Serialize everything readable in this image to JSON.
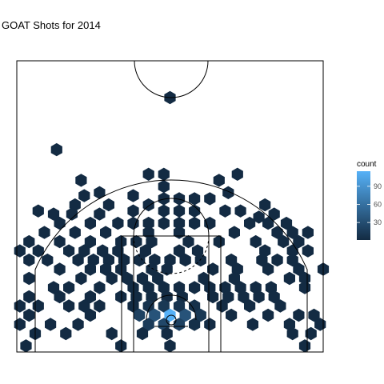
{
  "chart_data": {
    "type": "hexbin",
    "title": "GOAT Shots for 2014",
    "xlabel": "",
    "ylabel": "",
    "grid": false,
    "legend": {
      "title": "count",
      "position": "right",
      "ticks": [
        30,
        60,
        90
      ],
      "range": [
        1,
        115
      ],
      "color_low": "#132B43",
      "color_high": "#56B1F7"
    },
    "court": {
      "width_ft": 50,
      "length_ft": 47,
      "lane_outer_width_ft": 16,
      "lane_inner_width_ft": 12,
      "free_throw_line_ft": 19,
      "free_throw_circle_radius_ft": 6,
      "restricted_area_radius_ft": 4,
      "hoop_center_ft": 5.25,
      "three_point_radius_ft": 23.75,
      "three_point_corner_ft": 22,
      "center_circle_radius_ft": 6
    },
    "bins_ft": [
      [
        0,
        41.5,
        1
      ],
      [
        -18.5,
        33.0,
        1
      ],
      [
        -3.5,
        29.0,
        1
      ],
      [
        -1.0,
        29.0,
        1
      ],
      [
        11.0,
        29.0,
        1
      ],
      [
        -14.5,
        28.0,
        1
      ],
      [
        -1.0,
        27.0,
        1
      ],
      [
        8.0,
        28.0,
        1
      ],
      [
        -11.5,
        26.0,
        1
      ],
      [
        9.5,
        26.0,
        1
      ],
      [
        -14.0,
        25.5,
        1
      ],
      [
        -6.0,
        25.5,
        1
      ],
      [
        -1.0,
        25.0,
        1
      ],
      [
        1.5,
        25.0,
        1
      ],
      [
        4.0,
        25.0,
        1
      ],
      [
        6.5,
        25.0,
        1
      ],
      [
        -3.5,
        24.0,
        1
      ],
      [
        -10.0,
        24.0,
        1
      ],
      [
        -15.5,
        24.0,
        1
      ],
      [
        15.5,
        24.0,
        1
      ],
      [
        -11.5,
        22.5,
        1
      ],
      [
        -6.0,
        23.0,
        1
      ],
      [
        -1.0,
        23.0,
        1
      ],
      [
        1.5,
        23.0,
        1
      ],
      [
        4.0,
        23.0,
        1
      ],
      [
        9.0,
        23.0,
        1
      ],
      [
        11.5,
        23.0,
        1
      ],
      [
        -21.5,
        23.0,
        1
      ],
      [
        -19.0,
        22.5,
        1
      ],
      [
        -16.0,
        22.5,
        1
      ],
      [
        14.5,
        22.0,
        1
      ],
      [
        17.0,
        22.5,
        1
      ],
      [
        -18.0,
        21.0,
        1
      ],
      [
        -13.0,
        21.0,
        1
      ],
      [
        -8.5,
        21.0,
        1
      ],
      [
        -6.0,
        21.0,
        1
      ],
      [
        -3.5,
        21.0,
        1
      ],
      [
        -1.0,
        21.0,
        1
      ],
      [
        1.5,
        21.0,
        1
      ],
      [
        4.0,
        21.0,
        1
      ],
      [
        6.5,
        21.0,
        1
      ],
      [
        13.0,
        21.0,
        1
      ],
      [
        16.0,
        21.0,
        1
      ],
      [
        19.0,
        21.0,
        1
      ],
      [
        -20.5,
        19.5,
        1
      ],
      [
        -15.5,
        19.5,
        1
      ],
      [
        -10.5,
        19.5,
        1
      ],
      [
        -3.5,
        19.5,
        1
      ],
      [
        1.5,
        19.5,
        1
      ],
      [
        10.5,
        19.5,
        1
      ],
      [
        17.5,
        19.5,
        1
      ],
      [
        20.0,
        19.5,
        1
      ],
      [
        22.5,
        19.5,
        1
      ],
      [
        -23.0,
        18.0,
        1
      ],
      [
        -18.0,
        18.0,
        1
      ],
      [
        -13.0,
        18.0,
        1
      ],
      [
        -8.0,
        18.0,
        1
      ],
      [
        -5.5,
        18.0,
        1
      ],
      [
        -3.0,
        18.0,
        1
      ],
      [
        3.0,
        18.0,
        1
      ],
      [
        8.0,
        18.0,
        1
      ],
      [
        14.0,
        18.0,
        1
      ],
      [
        18.5,
        18.0,
        1
      ],
      [
        21.0,
        18.0,
        1
      ],
      [
        -24.5,
        16.5,
        1
      ],
      [
        -21.5,
        16.5,
        1
      ],
      [
        -16.5,
        16.5,
        1
      ],
      [
        -14.0,
        16.5,
        1
      ],
      [
        -11.0,
        16.5,
        1
      ],
      [
        -8.5,
        16.5,
        1
      ],
      [
        -4.0,
        16.5,
        1
      ],
      [
        1.5,
        16.5,
        1
      ],
      [
        4.5,
        16.5,
        1
      ],
      [
        15.5,
        16.5,
        1
      ],
      [
        20.0,
        16.5,
        1
      ],
      [
        22.5,
        16.5,
        1
      ],
      [
        -23.0,
        15.0,
        1
      ],
      [
        -20.0,
        15.0,
        1
      ],
      [
        -15.0,
        15.0,
        1
      ],
      [
        -12.5,
        15.0,
        1
      ],
      [
        -10.0,
        15.0,
        1
      ],
      [
        -7.5,
        15.0,
        1
      ],
      [
        -5.0,
        15.0,
        1
      ],
      [
        -2.5,
        15.0,
        1
      ],
      [
        0.0,
        15.0,
        1
      ],
      [
        2.5,
        15.0,
        1
      ],
      [
        5.0,
        15.0,
        1
      ],
      [
        10.0,
        15.0,
        1
      ],
      [
        15.0,
        15.0,
        1
      ],
      [
        17.5,
        15.0,
        1
      ],
      [
        20.0,
        15.0,
        1
      ],
      [
        -18.0,
        13.5,
        1
      ],
      [
        -13.0,
        13.5,
        1
      ],
      [
        -10.5,
        13.5,
        1
      ],
      [
        -8.0,
        13.5,
        1
      ],
      [
        -3.0,
        13.5,
        1
      ],
      [
        -0.5,
        13.5,
        1
      ],
      [
        7.0,
        13.5,
        1
      ],
      [
        11.0,
        13.5,
        1
      ],
      [
        16.0,
        13.5,
        1
      ],
      [
        21.0,
        13.5,
        1
      ],
      [
        25.0,
        13.5,
        1
      ],
      [
        -23.0,
        12.0,
        1
      ],
      [
        -14.5,
        12.0,
        1
      ],
      [
        -9.5,
        12.0,
        1
      ],
      [
        -7.0,
        12.0,
        1
      ],
      [
        -4.5,
        12.0,
        1
      ],
      [
        -2.0,
        12.0,
        1
      ],
      [
        5.5,
        12.0,
        1
      ],
      [
        10.5,
        12.0,
        1
      ],
      [
        19.5,
        12.0,
        1
      ],
      [
        22.0,
        12.0,
        1
      ],
      [
        -19.0,
        10.5,
        1
      ],
      [
        -16.5,
        10.5,
        1
      ],
      [
        -11.5,
        10.5,
        1
      ],
      [
        -6.0,
        10.5,
        1
      ],
      [
        -3.5,
        10.5,
        1
      ],
      [
        -1.0,
        10.5,
        1
      ],
      [
        1.5,
        10.5,
        1
      ],
      [
        4.0,
        10.5,
        1
      ],
      [
        6.5,
        10.5,
        1
      ],
      [
        9.0,
        10.5,
        1
      ],
      [
        11.5,
        10.5,
        1
      ],
      [
        14.0,
        10.5,
        1
      ],
      [
        16.5,
        10.5,
        1
      ],
      [
        22.0,
        10.5,
        1
      ],
      [
        -23.0,
        9.0,
        1
      ],
      [
        -18.0,
        9.0,
        1
      ],
      [
        -13.0,
        9.0,
        1
      ],
      [
        -8.0,
        9.0,
        1
      ],
      [
        -5.5,
        9.0,
        1
      ],
      [
        -3.0,
        9.0,
        1
      ],
      [
        -0.5,
        9.0,
        1
      ],
      [
        2.0,
        9.0,
        1
      ],
      [
        7.0,
        9.0,
        1
      ],
      [
        9.5,
        9.0,
        1
      ],
      [
        12.0,
        9.0,
        1
      ],
      [
        14.5,
        9.0,
        1
      ],
      [
        17.0,
        9.0,
        1
      ],
      [
        -24.5,
        7.5,
        1
      ],
      [
        -21.5,
        7.5,
        1
      ],
      [
        -16.5,
        7.5,
        1
      ],
      [
        -14.0,
        7.5,
        1
      ],
      [
        -11.5,
        7.5,
        1
      ],
      [
        -6.0,
        7.5,
        1
      ],
      [
        -3.5,
        7.5,
        8
      ],
      [
        -1.0,
        7.5,
        12
      ],
      [
        1.5,
        7.5,
        8
      ],
      [
        4.0,
        7.5,
        6
      ],
      [
        8.5,
        7.5,
        1
      ],
      [
        13.0,
        7.5,
        1
      ],
      [
        18.0,
        7.5,
        1
      ],
      [
        -23.0,
        6.0,
        1
      ],
      [
        -13.0,
        6.0,
        1
      ],
      [
        -5.0,
        6.0,
        20
      ],
      [
        -2.5,
        6.0,
        35
      ],
      [
        0.0,
        6.0,
        115
      ],
      [
        2.5,
        6.0,
        35
      ],
      [
        5.0,
        6.0,
        12
      ],
      [
        10.0,
        6.0,
        1
      ],
      [
        16.0,
        6.0,
        1
      ],
      [
        21.0,
        6.0,
        1
      ],
      [
        23.5,
        6.0,
        1
      ],
      [
        -24.5,
        4.5,
        1
      ],
      [
        -19.5,
        4.5,
        1
      ],
      [
        -15.0,
        4.5,
        1
      ],
      [
        -3.5,
        4.5,
        15
      ],
      [
        -1.0,
        4.5,
        25
      ],
      [
        1.5,
        4.5,
        20
      ],
      [
        4.0,
        4.5,
        5
      ],
      [
        6.5,
        4.5,
        2
      ],
      [
        13.5,
        4.5,
        1
      ],
      [
        19.5,
        4.5,
        1
      ],
      [
        24.5,
        4.5,
        1
      ],
      [
        -22.0,
        3.0,
        1
      ],
      [
        -17.0,
        3.0,
        1
      ],
      [
        -9.5,
        3.0,
        1
      ],
      [
        -4.5,
        3.0,
        1
      ],
      [
        -0.5,
        3.0,
        1
      ],
      [
        20.0,
        3.0,
        1
      ],
      [
        23.0,
        3.0,
        1
      ],
      [
        -23.5,
        1.0,
        1
      ],
      [
        -8.0,
        1.0,
        1
      ],
      [
        0.0,
        1.0,
        1
      ],
      [
        22.0,
        1.0,
        1
      ]
    ]
  }
}
